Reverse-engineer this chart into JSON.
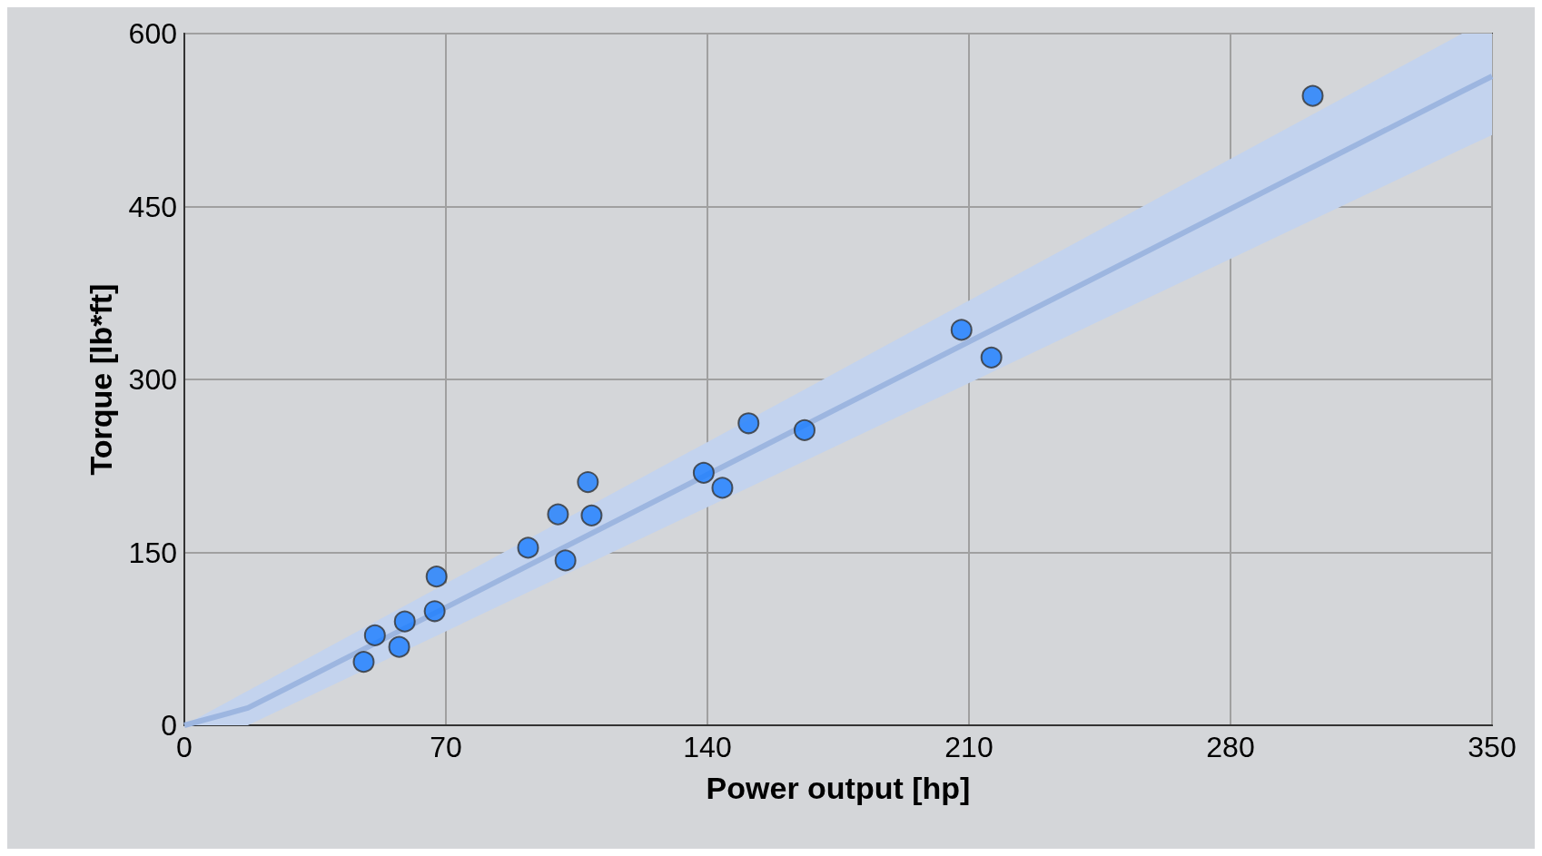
{
  "chart_data": {
    "type": "scatter",
    "xlabel": "Power output [hp]",
    "ylabel": "Torque [lb*ft]",
    "xlim": [
      0,
      350
    ],
    "xticks": [
      0,
      70,
      140,
      210,
      280,
      350
    ],
    "ylim": [
      0,
      600
    ],
    "yticks": [
      0,
      150,
      300,
      450,
      600
    ],
    "grid": true,
    "series": [
      {
        "type": "line",
        "marker": "none",
        "color": "#9db6e0",
        "x": [
          0,
          17,
          342,
          350
        ],
        "values": [
          0,
          15,
          550,
          563
        ],
        "lower": [
          0,
          0,
          500,
          512
        ],
        "upper": [
          0,
          30,
          600,
          600
        ]
      },
      {
        "marker": "circle",
        "color": "#1a7dff",
        "x": [
          48,
          51,
          57.5,
          59,
          67,
          67.5,
          92,
          100,
          102,
          108,
          109,
          139,
          144,
          151,
          166,
          208,
          216,
          302
        ],
        "values": [
          55,
          78,
          68,
          90,
          99,
          129,
          154,
          183,
          143,
          211,
          182,
          219,
          206,
          262,
          256,
          343,
          319,
          546
        ]
      }
    ]
  }
}
